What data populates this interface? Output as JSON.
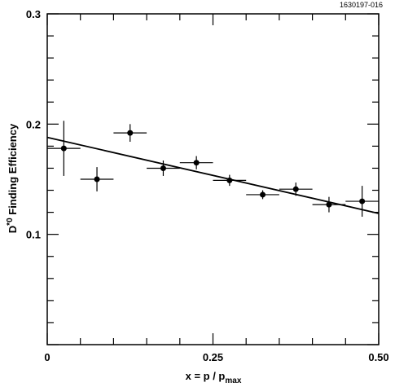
{
  "chart_data": {
    "type": "scatter",
    "figure_id": "1630197-016",
    "xlabel": {
      "main": "x = p / p",
      "sub": "max"
    },
    "ylabel": {
      "main": "D",
      "sup": "*0",
      "rest": " Finding  Efficiency"
    },
    "xlim": [
      0,
      0.5
    ],
    "ylim": [
      0,
      0.3
    ],
    "x_ticks": [
      {
        "value": 0,
        "label": "0"
      },
      {
        "value": 0.25,
        "label": "0.25"
      },
      {
        "value": 0.5,
        "label": "0.50"
      }
    ],
    "y_ticks": [
      {
        "value": 0.1,
        "label": "0.1"
      },
      {
        "value": 0.2,
        "label": "0.2"
      },
      {
        "value": 0.3,
        "label": "0.3"
      }
    ],
    "grid": false,
    "points": [
      {
        "x": 0.025,
        "y": 0.178,
        "xerr": 0.025,
        "yerr": 0.025
      },
      {
        "x": 0.075,
        "y": 0.15,
        "xerr": 0.025,
        "yerr": 0.011
      },
      {
        "x": 0.125,
        "y": 0.192,
        "xerr": 0.025,
        "yerr": 0.008
      },
      {
        "x": 0.175,
        "y": 0.16,
        "xerr": 0.025,
        "yerr": 0.007
      },
      {
        "x": 0.225,
        "y": 0.165,
        "xerr": 0.025,
        "yerr": 0.006
      },
      {
        "x": 0.275,
        "y": 0.149,
        "xerr": 0.025,
        "yerr": 0.005
      },
      {
        "x": 0.325,
        "y": 0.136,
        "xerr": 0.025,
        "yerr": 0.004
      },
      {
        "x": 0.375,
        "y": 0.141,
        "xerr": 0.025,
        "yerr": 0.006
      },
      {
        "x": 0.425,
        "y": 0.127,
        "xerr": 0.025,
        "yerr": 0.007
      },
      {
        "x": 0.475,
        "y": 0.13,
        "xerr": 0.025,
        "yerr": 0.014
      }
    ],
    "fit_line": {
      "x": [
        0,
        0.5
      ],
      "y": [
        0.188,
        0.119
      ]
    }
  }
}
